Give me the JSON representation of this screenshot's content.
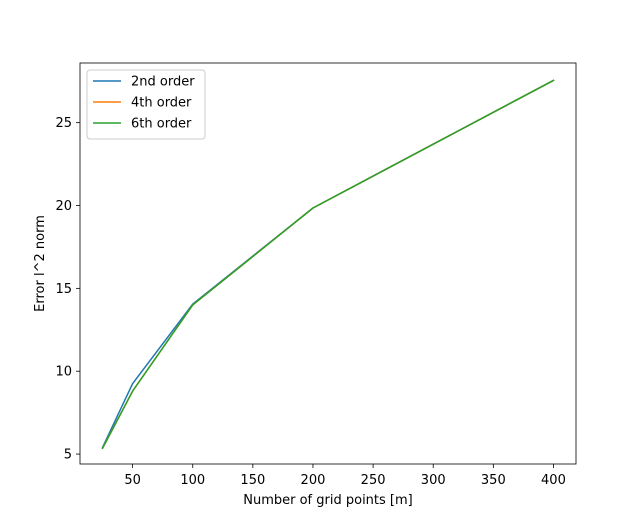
{
  "chart_data": {
    "type": "line",
    "title": "",
    "xlabel": "Number of grid points [m]",
    "ylabel": "Error l^2 norm",
    "xlim": [
      6.25,
      418.75
    ],
    "ylim": [
      4.4,
      28.6
    ],
    "xticks": [
      50,
      100,
      150,
      200,
      250,
      300,
      350,
      400
    ],
    "yticks": [
      5,
      10,
      15,
      20,
      25
    ],
    "grid": false,
    "legend": "upper-left",
    "x": [
      25,
      50,
      100,
      200,
      400
    ],
    "series": [
      {
        "name": "2nd order",
        "color": "#1f77b4",
        "values": [
          5.4,
          9.25,
          14.05,
          19.85,
          27.55
        ]
      },
      {
        "name": "4th order",
        "color": "#ff7f0e",
        "values": [
          5.35,
          8.8,
          14.0,
          19.85,
          27.55
        ]
      },
      {
        "name": "6th order",
        "color": "#2ca02c",
        "values": [
          5.35,
          8.8,
          14.0,
          19.85,
          27.55
        ]
      }
    ]
  }
}
